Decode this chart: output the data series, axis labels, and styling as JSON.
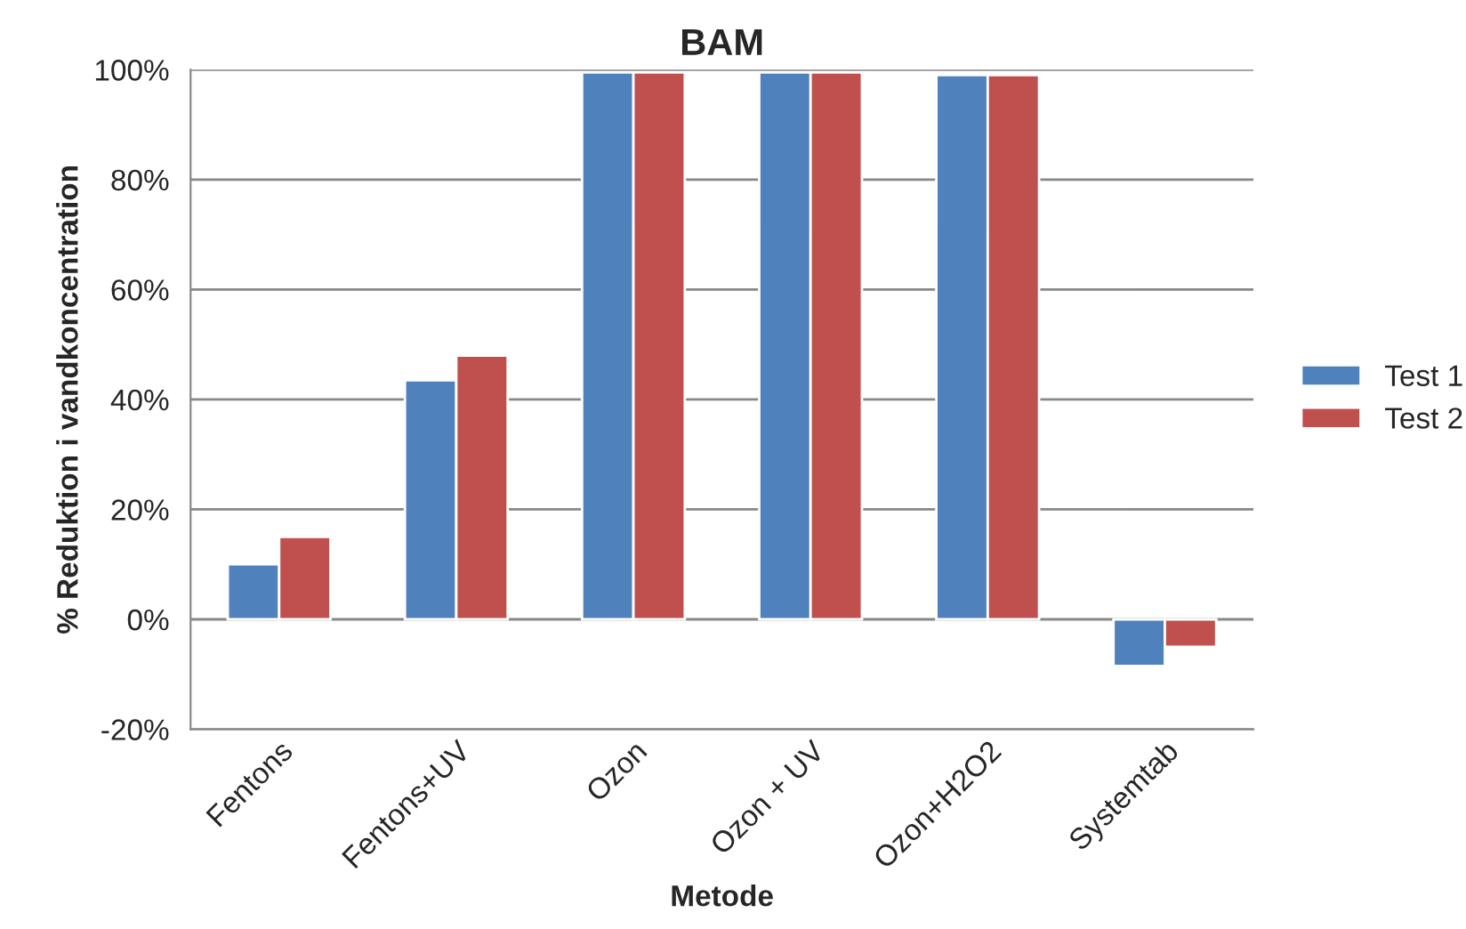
{
  "chart_data": {
    "type": "bar",
    "title": "BAM",
    "xlabel": "Metode",
    "ylabel": "% Reduktion i vandkoncentration",
    "categories": [
      "Fentons",
      "Fentons+UV",
      "Ozon",
      "Ozon + UV",
      "Ozon+H2O2",
      "Systemtab"
    ],
    "series": [
      {
        "name": "Test 1",
        "color": "#4f81bd",
        "values": [
          10,
          43.5,
          99.5,
          99.5,
          99,
          -8.5
        ]
      },
      {
        "name": "Test 2",
        "color": "#c0504d",
        "values": [
          15,
          48,
          99.5,
          99.5,
          99,
          -5
        ]
      }
    ],
    "ylim": [
      -20,
      100
    ],
    "yticks": [
      {
        "value": -20,
        "label": "-20%"
      },
      {
        "value": 0,
        "label": "0%"
      },
      {
        "value": 20,
        "label": "20%"
      },
      {
        "value": 40,
        "label": "40%"
      },
      {
        "value": 60,
        "label": "60%"
      },
      {
        "value": 80,
        "label": "80%"
      },
      {
        "value": 100,
        "label": "100%"
      }
    ],
    "grid": "y",
    "legend": "right"
  }
}
